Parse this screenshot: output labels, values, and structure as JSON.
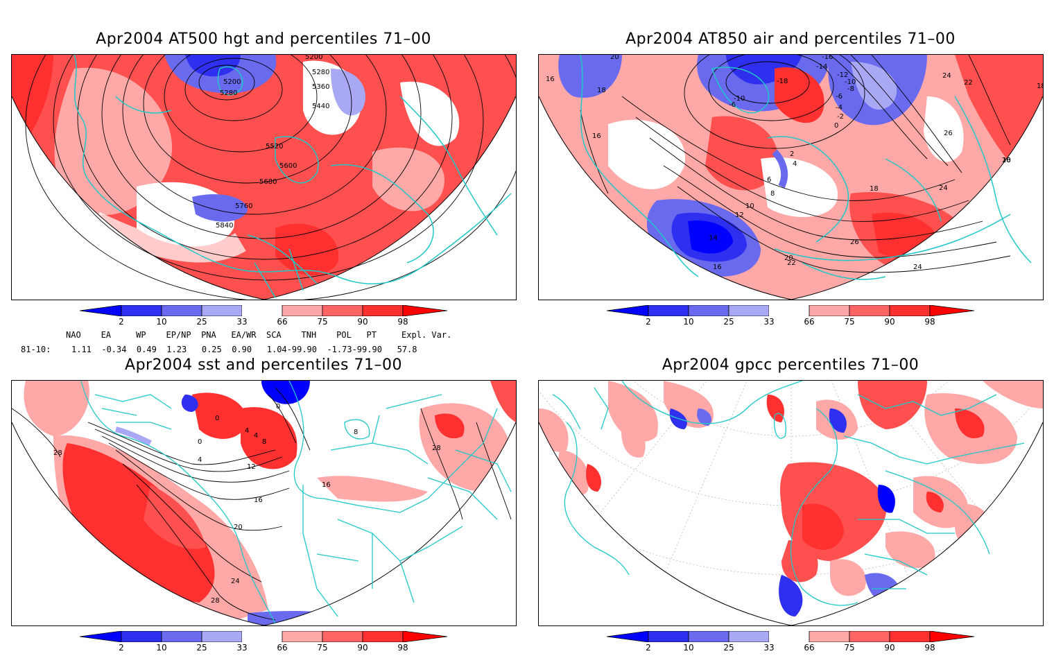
{
  "panels": [
    {
      "title": "Apr2004 AT500 hgt and percentiles 71–00",
      "contour_labels": [
        "5200",
        "5200",
        "5280",
        "5280",
        "5360",
        "5440",
        "5520",
        "5600",
        "5680",
        "5760",
        "5840"
      ]
    },
    {
      "title": "Apr2004 AT850 air and percentiles 71–00",
      "contour_labels": [
        "16",
        "18",
        "20",
        "24",
        "22",
        "18",
        "16",
        "-16",
        "-14",
        "-12",
        "-10",
        "-8",
        "-6",
        "-4",
        "-2",
        "0",
        "2",
        "4",
        "6",
        "8",
        "10",
        "12",
        "14",
        "16",
        "18",
        "20",
        "22",
        "24",
        "26",
        "26",
        "24",
        "20",
        "18",
        "-18",
        "-10",
        "-6"
      ]
    },
    {
      "title": "Apr2004 sst and percentiles 71–00",
      "contour_labels": [
        "28",
        "0",
        "0",
        "0",
        "4",
        "4",
        "8",
        "4",
        "12",
        "16",
        "20",
        "24",
        "28",
        "28",
        "8",
        "16"
      ]
    },
    {
      "title": "Apr2004 gpcc percentiles 71–00",
      "contour_labels": []
    }
  ],
  "colorbar": {
    "labels": [
      "2",
      "10",
      "25",
      "33",
      "66",
      "75",
      "90",
      "98"
    ],
    "colors": {
      "lt2": "#0000ff",
      "c2_10": "#2f2fef",
      "c10_25": "#6a6aef",
      "c25_33": "#a8a8f5",
      "c33_66": "#ffffff",
      "c66_75": "#ffa8a8",
      "c75_90": "#ff6565",
      "c90_98": "#ff3030",
      "gt98": "#ff0000"
    }
  },
  "indices": {
    "header": "NAO    EA     WP    EP/NP  PNA   EA/WR  SCA    TNH    POL   PT     Expl. Var.",
    "row_label": "81-10:",
    "values": "1.11  -0.34  0.49  1.23   0.25  0.90   1.04-99.90  -1.73-99.90   57.8"
  },
  "colors": {
    "coast": "#1fc8c8",
    "contour": "#000000"
  }
}
